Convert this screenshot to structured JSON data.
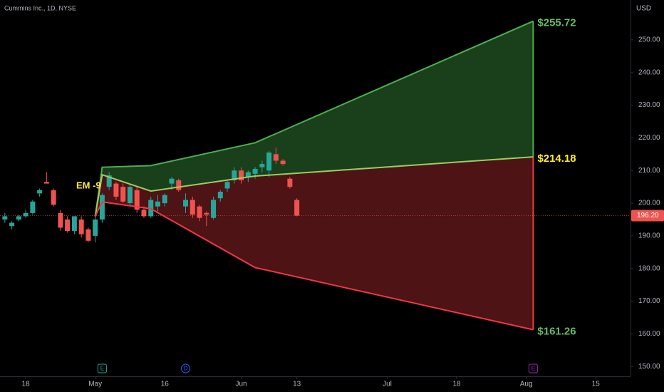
{
  "chart_data": {
    "type": "candlestick",
    "title": "Cummins Inc., 1D, NYSE",
    "currency": "USD",
    "up_color": "#26a69a",
    "down_color": "#ef5350",
    "x": [
      -3,
      -2,
      -1,
      0,
      1,
      2,
      3,
      4,
      5,
      6,
      7,
      8,
      9,
      10,
      11,
      12,
      13,
      14,
      15,
      16,
      17,
      18,
      19,
      20,
      21,
      22,
      23,
      24,
      25,
      26,
      27,
      28,
      29,
      30,
      31,
      32,
      33,
      34,
      35,
      36,
      37,
      38,
      39
    ],
    "open": [
      195,
      193,
      195,
      196,
      197,
      203,
      206.5,
      204,
      197,
      195,
      191.5,
      195,
      192,
      190,
      195,
      205,
      206,
      205,
      200,
      204,
      198,
      196,
      199,
      200,
      206,
      207,
      199,
      201,
      199,
      197,
      195.5,
      201.5,
      204.5,
      207,
      210,
      208,
      209,
      211,
      210,
      215,
      213,
      207.5,
      201
    ],
    "high": [
      197,
      194.5,
      196.5,
      198,
      201,
      204.5,
      209.5,
      204.5,
      198,
      196,
      196,
      196,
      192.5,
      196,
      203,
      209.5,
      206.5,
      206,
      206,
      205,
      199,
      202,
      202.5,
      203,
      208,
      207.5,
      203,
      202,
      199.5,
      197.5,
      202,
      204,
      207,
      211,
      211,
      210,
      211,
      213,
      216,
      217,
      213.5,
      208,
      201.5
    ],
    "low": [
      194,
      192,
      194.5,
      195.5,
      196.5,
      202,
      206,
      199,
      191.5,
      191,
      190.5,
      189.5,
      188,
      188,
      194,
      204,
      201,
      200,
      199,
      197,
      195.5,
      195.5,
      197.5,
      199,
      204,
      203.5,
      197,
      195.5,
      194.5,
      193,
      195,
      200.5,
      203.5,
      206,
      206,
      206.5,
      207.5,
      209.5,
      208,
      212,
      211.5,
      204.5,
      196
    ],
    "close": [
      196,
      194,
      196,
      197,
      200.5,
      204,
      206,
      199.5,
      192.5,
      191.5,
      196,
      190.5,
      188.5,
      195,
      202.5,
      208.5,
      202,
      200.5,
      205,
      198,
      196,
      201,
      200.5,
      202.5,
      207.5,
      204,
      201,
      196.5,
      195.5,
      196.5,
      201,
      203.5,
      206.5,
      210,
      207,
      209.5,
      210.5,
      212,
      215.5,
      213,
      212,
      205,
      196.2
    ],
    "last_price": {
      "value": 196.2,
      "label": "196.20"
    },
    "cone": {
      "x": [
        10,
        11,
        18,
        33,
        73
      ],
      "upper": {
        "values": [
          196,
          211,
          211.5,
          218.5,
          255.72
        ],
        "color": "#4caf50",
        "fill": "#1d4a20",
        "value_label": "$255.72",
        "label_color": "#66bb6a"
      },
      "middle": {
        "values": [
          196,
          208.7,
          203.7,
          208.3,
          214.18
        ],
        "color": "#9ccc65",
        "value_label": "$214.18",
        "label_color": "#ffeb3b"
      },
      "lower": {
        "values": [
          196,
          200.4,
          198.3,
          180.3,
          161.26
        ],
        "color": "#f23645",
        "fill": "#5a1619",
        "value_label": "$161.26",
        "label_color": "#66bb6a"
      }
    },
    "annotation": "EM -9",
    "events": [
      {
        "x": 11,
        "label": "E"
      },
      {
        "x": 23,
        "label": "D"
      },
      {
        "x": 73,
        "label": "E"
      }
    ],
    "xlim": [
      -3.7,
      87
    ],
    "ylim": [
      147,
      262.2
    ],
    "xticks": [
      {
        "value": 0,
        "label": "18"
      },
      {
        "value": 10,
        "label": "May"
      },
      {
        "value": 20,
        "label": "16"
      },
      {
        "value": 31,
        "label": "Jun"
      },
      {
        "value": 39,
        "label": "13"
      },
      {
        "value": 52,
        "label": "Jul"
      },
      {
        "value": 62,
        "label": "18"
      },
      {
        "value": 72,
        "label": "Aug"
      },
      {
        "value": 82,
        "label": "15"
      }
    ],
    "yticks": [
      {
        "value": 150,
        "label": "150.00"
      },
      {
        "value": 160,
        "label": "160.00"
      },
      {
        "value": 170,
        "label": "170.00"
      },
      {
        "value": 180,
        "label": "180.00"
      },
      {
        "value": 190,
        "label": "190.00"
      },
      {
        "value": 200,
        "label": "200.00"
      },
      {
        "value": 210,
        "label": "210.00"
      },
      {
        "value": 220,
        "label": "220.00"
      },
      {
        "value": 230,
        "label": "230.00"
      },
      {
        "value": 240,
        "label": "240.00"
      },
      {
        "value": 250,
        "label": "250.00"
      }
    ]
  }
}
